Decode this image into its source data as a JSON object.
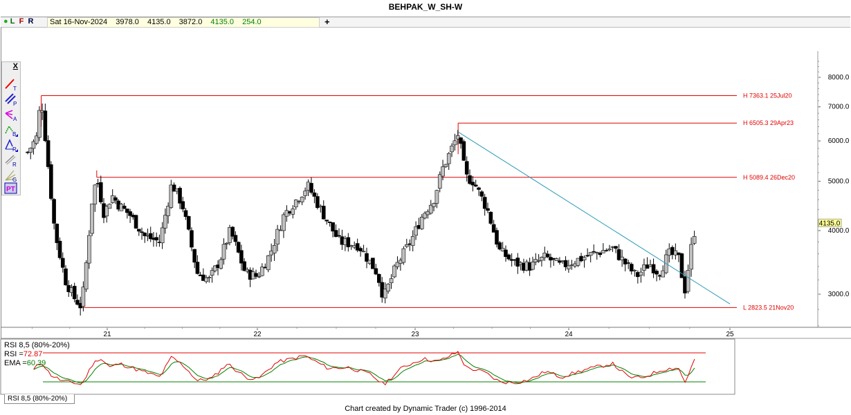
{
  "title": "BEHPAK_W_SH-W",
  "topbar": {
    "dot": "●",
    "flag_l": "L",
    "flag_f": "F",
    "flag_r": "R",
    "date": "Sat 16-Nov-2024",
    "open": "3978.0",
    "high": "4135.0",
    "low": "3872.0",
    "close": "4135.0",
    "change": "254.0",
    "plus": "+"
  },
  "toolbar": {
    "close_label": "X",
    "items": [
      {
        "icon": "trendline-icon",
        "letter": "T"
      },
      {
        "icon": "parallel-lines-icon",
        "letter": "P"
      },
      {
        "icon": "andrews-pitchfork-icon",
        "letter": "A"
      },
      {
        "icon": "fib-extension-icon",
        "letter": "B"
      },
      {
        "icon": "retracement-icon",
        "letter": "R"
      },
      {
        "icon": "ratio-icon",
        "letter": "R"
      },
      {
        "icon": "gann-fan-icon",
        "letter": "G"
      },
      {
        "icon": "time-projection-icon",
        "letter": "PT"
      }
    ]
  },
  "rsi_legend": {
    "title": "RSI 8,5 (80%-20%)",
    "rsi_label": "RSI =",
    "rsi_value": "72.87",
    "ema_label": "EMA =",
    "ema_value": "60.39"
  },
  "rsi_tab": "RSI 8,5 (80%-20%)",
  "footer": "Chart created by Dynamic Trader  (c) 1996-2014",
  "colors": {
    "level_line": "#e00000",
    "trendline": "#2a9bb5",
    "bull_candle": "#c0c0c0",
    "bear_candle": "#000000",
    "rsi_line": "#e00000",
    "ema_line": "#008000",
    "price_tag_bg": "#ffff99"
  },
  "chart_data": [
    {
      "type": "candlestick",
      "title": "BEHPAK_W_SH-W",
      "x_axis": {
        "tick_labels": [
          "21",
          "22",
          "23",
          "24",
          "25"
        ],
        "range": [
          20.5,
          25.0
        ]
      },
      "y_axis": {
        "scale": "log",
        "range": [
          2500,
          8600
        ],
        "tick_labels": [
          "3000.0",
          "4000.0",
          "5000.0",
          "6000.0",
          "7000.0",
          "8000.0"
        ],
        "ticks": [
          3000,
          4000,
          5000,
          6000,
          7000,
          8000
        ]
      },
      "last_price": {
        "value": 4135.0,
        "label": "4135.0"
      },
      "levels": [
        {
          "label": "H 7363.1 25Jul20",
          "value": 7363.1,
          "start_x": 20.56
        },
        {
          "label": "H 6505.3 29Apr23",
          "value": 6505.3,
          "start_x": 23.28
        },
        {
          "label": "H 5089.4 26Dec20",
          "value": 5089.4,
          "start_x": 20.93
        },
        {
          "label": "L 2823.5 21Nov20",
          "value": 2823.5,
          "start_x": 20.83
        }
      ],
      "trendline": {
        "from": {
          "x": 23.28,
          "y": 6250
        },
        "to": {
          "x": 25.0,
          "y": 2870
        }
      },
      "anchor_points": [
        {
          "x": 20.47,
          "y": 5700
        },
        {
          "x": 20.53,
          "y": 6100
        },
        {
          "x": 20.56,
          "y": 7363
        },
        {
          "x": 20.6,
          "y": 5600
        },
        {
          "x": 20.65,
          "y": 4000
        },
        {
          "x": 20.72,
          "y": 3200
        },
        {
          "x": 20.78,
          "y": 2950
        },
        {
          "x": 20.83,
          "y": 2830
        },
        {
          "x": 20.86,
          "y": 3450
        },
        {
          "x": 20.9,
          "y": 4600
        },
        {
          "x": 20.93,
          "y": 5089
        },
        {
          "x": 20.98,
          "y": 4300
        },
        {
          "x": 21.03,
          "y": 4700
        },
        {
          "x": 21.08,
          "y": 4480
        },
        {
          "x": 21.15,
          "y": 4300
        },
        {
          "x": 21.25,
          "y": 3900
        },
        {
          "x": 21.35,
          "y": 3800
        },
        {
          "x": 21.43,
          "y": 4950
        },
        {
          "x": 21.5,
          "y": 4500
        },
        {
          "x": 21.6,
          "y": 3300
        },
        {
          "x": 21.68,
          "y": 3200
        },
        {
          "x": 21.75,
          "y": 3500
        },
        {
          "x": 21.82,
          "y": 4000
        },
        {
          "x": 21.92,
          "y": 3300
        },
        {
          "x": 22.0,
          "y": 3250
        },
        {
          "x": 22.08,
          "y": 3600
        },
        {
          "x": 22.17,
          "y": 4300
        },
        {
          "x": 22.32,
          "y": 4900
        },
        {
          "x": 22.42,
          "y": 4300
        },
        {
          "x": 22.52,
          "y": 3800
        },
        {
          "x": 22.64,
          "y": 3750
        },
        {
          "x": 22.76,
          "y": 3300
        },
        {
          "x": 22.8,
          "y": 2950
        },
        {
          "x": 22.88,
          "y": 3400
        },
        {
          "x": 22.98,
          "y": 3850
        },
        {
          "x": 23.05,
          "y": 4300
        },
        {
          "x": 23.12,
          "y": 4600
        },
        {
          "x": 23.18,
          "y": 5300
        },
        {
          "x": 23.25,
          "y": 5900
        },
        {
          "x": 23.28,
          "y": 6200
        },
        {
          "x": 23.33,
          "y": 5100
        },
        {
          "x": 23.38,
          "y": 5000
        },
        {
          "x": 23.47,
          "y": 4400
        },
        {
          "x": 23.55,
          "y": 3650
        },
        {
          "x": 23.65,
          "y": 3450
        },
        {
          "x": 23.75,
          "y": 3400
        },
        {
          "x": 23.85,
          "y": 3550
        },
        {
          "x": 23.95,
          "y": 3400
        },
        {
          "x": 24.05,
          "y": 3500
        },
        {
          "x": 24.15,
          "y": 3600
        },
        {
          "x": 24.27,
          "y": 3700
        },
        {
          "x": 24.35,
          "y": 3450
        },
        {
          "x": 24.42,
          "y": 3250
        },
        {
          "x": 24.5,
          "y": 3450
        },
        {
          "x": 24.56,
          "y": 3300
        },
        {
          "x": 24.62,
          "y": 3600
        },
        {
          "x": 24.68,
          "y": 3550
        },
        {
          "x": 24.72,
          "y": 3050
        },
        {
          "x": 24.76,
          "y": 3700
        },
        {
          "x": 24.79,
          "y": 4135
        }
      ]
    },
    {
      "type": "line",
      "title": "RSI 8,5 (80%-20%)",
      "y_range": [
        0,
        100
      ],
      "levels": [
        {
          "value": 80
        },
        {
          "value": 20
        }
      ],
      "series": [
        {
          "name": "RSI",
          "last": 72.87
        },
        {
          "name": "EMA",
          "last": 60.39
        }
      ],
      "rsi_anchors": [
        {
          "x": 20.51,
          "y": 45
        },
        {
          "x": 20.56,
          "y": 62
        },
        {
          "x": 20.62,
          "y": 35
        },
        {
          "x": 20.7,
          "y": 22
        },
        {
          "x": 20.78,
          "y": 18
        },
        {
          "x": 20.83,
          "y": 14
        },
        {
          "x": 20.9,
          "y": 55
        },
        {
          "x": 20.95,
          "y": 70
        },
        {
          "x": 21.02,
          "y": 50
        },
        {
          "x": 21.08,
          "y": 58
        },
        {
          "x": 21.2,
          "y": 45
        },
        {
          "x": 21.35,
          "y": 30
        },
        {
          "x": 21.43,
          "y": 72
        },
        {
          "x": 21.52,
          "y": 50
        },
        {
          "x": 21.6,
          "y": 22
        },
        {
          "x": 21.7,
          "y": 28
        },
        {
          "x": 21.8,
          "y": 58
        },
        {
          "x": 21.92,
          "y": 30
        },
        {
          "x": 22.0,
          "y": 25
        },
        {
          "x": 22.12,
          "y": 60
        },
        {
          "x": 22.3,
          "y": 74
        },
        {
          "x": 22.45,
          "y": 48
        },
        {
          "x": 22.58,
          "y": 50
        },
        {
          "x": 22.72,
          "y": 35
        },
        {
          "x": 22.8,
          "y": 14
        },
        {
          "x": 22.92,
          "y": 50
        },
        {
          "x": 23.05,
          "y": 68
        },
        {
          "x": 23.15,
          "y": 62
        },
        {
          "x": 23.28,
          "y": 82
        },
        {
          "x": 23.33,
          "y": 50
        },
        {
          "x": 23.45,
          "y": 40
        },
        {
          "x": 23.55,
          "y": 20
        },
        {
          "x": 23.65,
          "y": 18
        },
        {
          "x": 23.75,
          "y": 25
        },
        {
          "x": 23.85,
          "y": 42
        },
        {
          "x": 23.95,
          "y": 30
        },
        {
          "x": 24.1,
          "y": 45
        },
        {
          "x": 24.27,
          "y": 58
        },
        {
          "x": 24.37,
          "y": 30
        },
        {
          "x": 24.45,
          "y": 28
        },
        {
          "x": 24.58,
          "y": 45
        },
        {
          "x": 24.68,
          "y": 50
        },
        {
          "x": 24.72,
          "y": 18
        },
        {
          "x": 24.79,
          "y": 72.87
        }
      ]
    }
  ]
}
